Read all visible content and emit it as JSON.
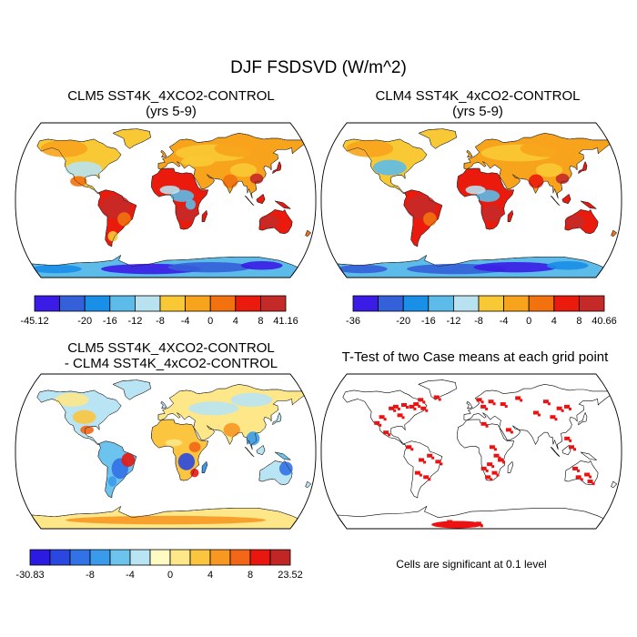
{
  "title": "DJF FSDSVD (W/m^2)",
  "panels": [
    {
      "title_line1": "CLM5 SST4K_4XCO2-CONTROL",
      "title_line2": "(yrs 5-9)",
      "colorbar": {
        "colors": [
          "#3a1ce6",
          "#3461d9",
          "#1a8fe8",
          "#5cbbe8",
          "#b9e2f0",
          "#f8c934",
          "#f7a31c",
          "#f2720f",
          "#ea1a0d",
          "#c52a28"
        ],
        "labels": [
          "-45.12",
          "-20",
          "-16",
          "-12",
          "-8",
          "-4",
          "0",
          "4",
          "8",
          "41.16"
        ]
      }
    },
    {
      "title_line1": "CLM4 SST4K_4xCO2-CONTROL",
      "title_line2": "(yrs 5-9)",
      "colorbar": {
        "colors": [
          "#3a1ce6",
          "#3461d9",
          "#1a8fe8",
          "#5cbbe8",
          "#b9e2f0",
          "#f8c934",
          "#f7a31c",
          "#f2720f",
          "#ea1a0d",
          "#c52a28"
        ],
        "labels": [
          "-36",
          "-20",
          "-16",
          "-12",
          "-8",
          "-4",
          "0",
          "4",
          "8",
          "40.66"
        ]
      }
    },
    {
      "title_line1": "CLM5 SST4K_4XCO2-CONTROL",
      "title_line2": "- CLM4 SST4K_4xCO2-CONTROL",
      "colorbar": {
        "colors": [
          "#2b1ae0",
          "#2a48e0",
          "#3272e6",
          "#3a9bea",
          "#6cc3ee",
          "#b8e4f4",
          "#fffbc2",
          "#fde789",
          "#fcc53f",
          "#f79823",
          "#f26617",
          "#e8170f",
          "#c02624"
        ],
        "labels": [
          "-30.83",
          "-8",
          "-4",
          "0",
          "4",
          "8",
          "23.52"
        ]
      }
    },
    {
      "title_line1": "T-Test of two Case means at each grid point",
      "footnote": "Cells are significant at 0.1 level"
    }
  ]
}
